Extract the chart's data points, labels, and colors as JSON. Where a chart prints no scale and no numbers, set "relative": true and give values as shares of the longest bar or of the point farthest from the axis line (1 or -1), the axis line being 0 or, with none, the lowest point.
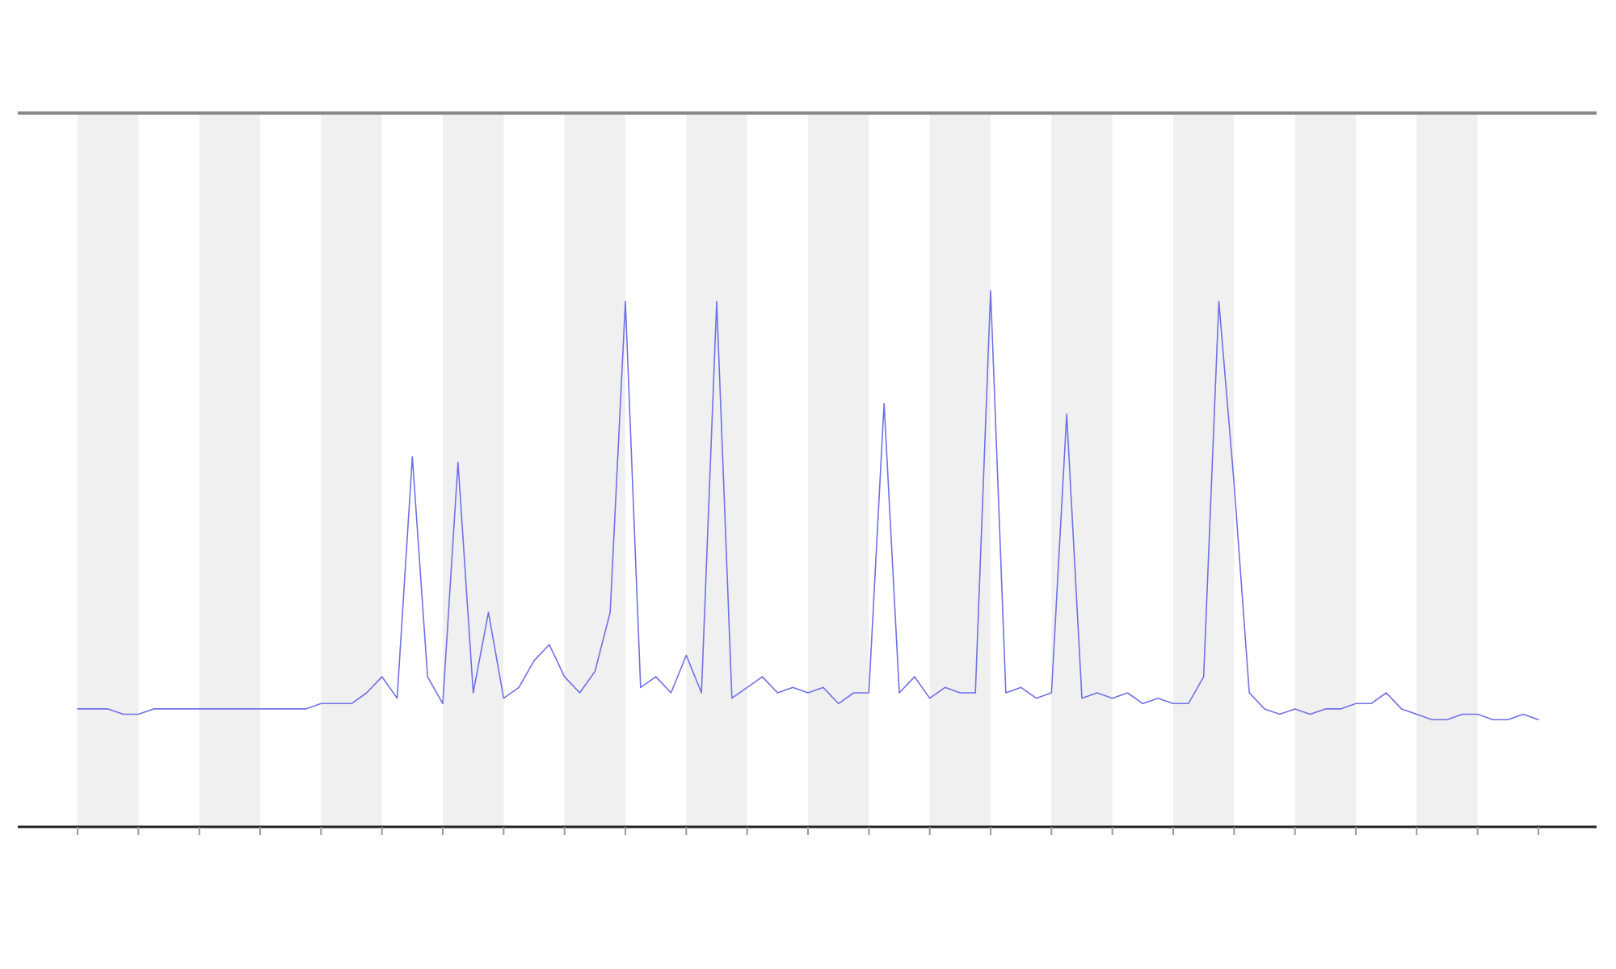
{
  "chart_data": {
    "type": "line",
    "relative": true,
    "categories": [
      null,
      null,
      null,
      null,
      null,
      null,
      null,
      null,
      null,
      null,
      null,
      null,
      null,
      null,
      null,
      null,
      null,
      null,
      null,
      null,
      null,
      null,
      null,
      null,
      null,
      null,
      null,
      null,
      null,
      null,
      null,
      null,
      null,
      null,
      null,
      null,
      null,
      null,
      null,
      null,
      null,
      null,
      null,
      null,
      null,
      null,
      null,
      null,
      null,
      null,
      null,
      null,
      null,
      null,
      null,
      null,
      null,
      null,
      null,
      null,
      null,
      null,
      null,
      null,
      null,
      null,
      null,
      null,
      null,
      null,
      null,
      null,
      null,
      null,
      null,
      null,
      null,
      null,
      null,
      null,
      null,
      null,
      null,
      null,
      null,
      null,
      null,
      null,
      null,
      null,
      null,
      null,
      null,
      null,
      null,
      null,
      null
    ],
    "series": [
      {
        "color": "#7070e8",
        "values": [
          0.22,
          0.22,
          0.22,
          0.21,
          0.21,
          0.22,
          0.22,
          0.22,
          0.22,
          0.22,
          0.22,
          0.22,
          0.22,
          0.22,
          0.22,
          0.22,
          0.23,
          0.23,
          0.23,
          0.25,
          0.28,
          0.24,
          0.69,
          0.28,
          0.23,
          0.68,
          0.25,
          0.4,
          0.24,
          0.26,
          0.31,
          0.34,
          0.28,
          0.25,
          0.29,
          0.4,
          0.98,
          0.26,
          0.28,
          0.25,
          0.32,
          0.25,
          0.98,
          0.24,
          0.26,
          0.28,
          0.25,
          0.26,
          0.25,
          0.26,
          0.23,
          0.25,
          0.25,
          0.79,
          0.25,
          0.28,
          0.24,
          0.26,
          0.25,
          0.25,
          1,
          0.25,
          0.26,
          0.24,
          0.25,
          0.77,
          0.24,
          0.25,
          0.24,
          0.25,
          0.23,
          0.24,
          0.23,
          0.23,
          0.28,
          0.98,
          0.64,
          0.25,
          0.22,
          0.21,
          0.22,
          0.21,
          0.22,
          0.22,
          0.23,
          0.23,
          0.25,
          0.22,
          0.21,
          0.2,
          0.2,
          0.21,
          0.21,
          0.2,
          0.2,
          0.21,
          0.2
        ]
      }
    ]
  }
}
